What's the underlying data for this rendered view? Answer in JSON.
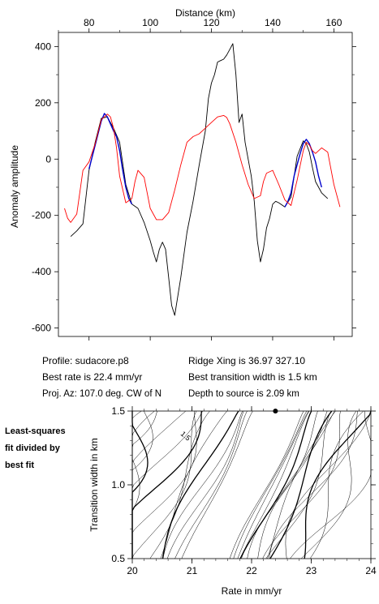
{
  "info": {
    "profile": "Profile: sudacore.p8",
    "best_rate": "Best rate is 22.4 mm/yr",
    "proj_az": "Proj. Az: 107.0 deg. CW of N",
    "ridge_xing": "Ridge Xing is 36.97 327.10",
    "best_transition": "Best transition width is 1.5 km",
    "depth": "Depth to source is   2.09 km"
  },
  "side_note": [
    "Least-squares",
    "fit divided by",
    "best fit"
  ],
  "chart_data": [
    {
      "type": "line",
      "xlabel": "Distance (km)",
      "ylabel": "Anomaly amplitude",
      "xlim": [
        70,
        166
      ],
      "ylim": [
        -630,
        450
      ],
      "xticks": [
        80,
        100,
        120,
        140,
        160
      ],
      "yticks": [
        400,
        200,
        0,
        -200,
        -400,
        -600
      ],
      "x_axis_position": "top",
      "series": [
        {
          "color": "#000000",
          "x": [
            74,
            76,
            78,
            80,
            82,
            84,
            86,
            88,
            90,
            92,
            94,
            96,
            98,
            100,
            101,
            102,
            103,
            104,
            105,
            106,
            107,
            108,
            110,
            112,
            114,
            116,
            118,
            119,
            120,
            121,
            122,
            123,
            124,
            125,
            126,
            127,
            128,
            129,
            130,
            131,
            132,
            133,
            134,
            135,
            136,
            137,
            138,
            139,
            140,
            141,
            142,
            144,
            146,
            148,
            150,
            151,
            152,
            153,
            154,
            156,
            158
          ],
          "y": [
            -275,
            -255,
            -230,
            -40,
            60,
            145,
            150,
            110,
            60,
            -90,
            -160,
            -175,
            -225,
            -290,
            -330,
            -365,
            -320,
            -295,
            -320,
            -420,
            -520,
            -555,
            -420,
            -260,
            -150,
            -20,
            100,
            215,
            270,
            300,
            345,
            350,
            355,
            370,
            390,
            410,
            300,
            130,
            160,
            60,
            0,
            -60,
            -150,
            -290,
            -365,
            -320,
            -245,
            -210,
            -160,
            -150,
            -155,
            -170,
            -135,
            10,
            65,
            55,
            25,
            -30,
            -80,
            -120,
            -140
          ]
        },
        {
          "color": "#0000cc",
          "x": [
            80,
            82,
            84,
            85,
            86,
            87,
            88,
            89,
            90,
            91,
            92,
            93,
            94
          ],
          "y": [
            -35,
            50,
            135,
            162,
            150,
            125,
            100,
            80,
            30,
            -40,
            -100,
            -140,
            -160
          ]
        },
        {
          "color": "#0000cc",
          "x": [
            144,
            145,
            146,
            147,
            148,
            149,
            150,
            151,
            152,
            153,
            154,
            155,
            156
          ],
          "y": [
            -170,
            -150,
            -120,
            -60,
            -20,
            20,
            55,
            70,
            55,
            25,
            -10,
            -60,
            -100
          ]
        },
        {
          "color": "#ff0000",
          "x": [
            72,
            73,
            74,
            76,
            78,
            80,
            82,
            84,
            86,
            87,
            88,
            89,
            90,
            92,
            94,
            95,
            96,
            98,
            100,
            102,
            104,
            106,
            108,
            110,
            112,
            114,
            116,
            118,
            120,
            122,
            124,
            125,
            126,
            128,
            130,
            132,
            134,
            136,
            137,
            138,
            140,
            142,
            144,
            146,
            148,
            150,
            151,
            152,
            153,
            154,
            156,
            158,
            160,
            162
          ],
          "y": [
            -175,
            -210,
            -225,
            -195,
            -40,
            -10,
            55,
            140,
            160,
            150,
            110,
            40,
            -60,
            -155,
            -140,
            -80,
            -40,
            -65,
            -175,
            -215,
            -215,
            -190,
            -110,
            -20,
            60,
            80,
            90,
            110,
            130,
            150,
            155,
            148,
            125,
            60,
            -20,
            -90,
            -140,
            -130,
            -80,
            -50,
            -40,
            -90,
            -145,
            -165,
            -75,
            30,
            60,
            50,
            30,
            20,
            40,
            25,
            -90,
            -170
          ]
        }
      ]
    },
    {
      "type": "contour",
      "xlabel": "Rate in mm/yr",
      "ylabel": "Transition width in km",
      "xlim": [
        20,
        24
      ],
      "ylim": [
        0.5,
        1.5
      ],
      "xticks": [
        20,
        21,
        22,
        23,
        24
      ],
      "yticks": [
        0.5,
        1.0,
        1.5
      ],
      "contour_label": "1.5",
      "best_fit_point": [
        22.4,
        1.5
      ]
    }
  ]
}
